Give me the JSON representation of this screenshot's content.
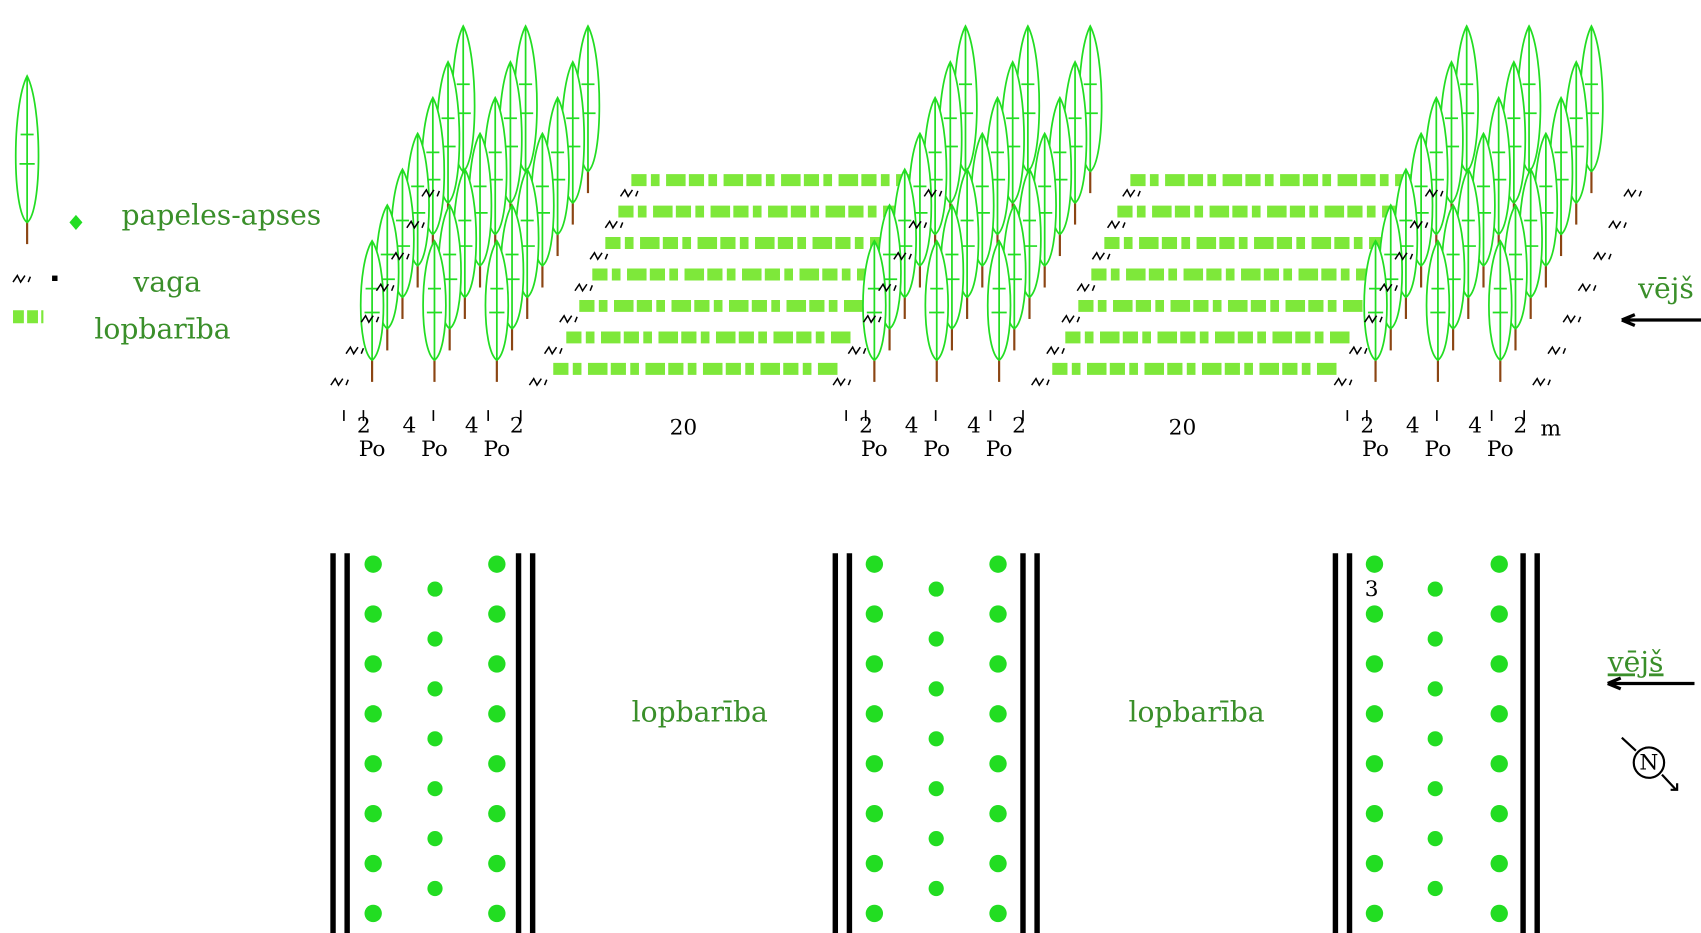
{
  "legend": [
    "papeles-apses",
    "vaga",
    "lopbarība"
  ],
  "top_wind": "vējš",
  "bottom_wind": "vējš",
  "belts": [
    {
      "spacing": [
        "2",
        "4",
        "4",
        "2"
      ],
      "species": [
        "Po",
        "Po",
        "Po"
      ]
    },
    {
      "spacing": [
        "2",
        "4",
        "4",
        "2"
      ],
      "species": [
        "Po",
        "Po",
        "Po"
      ]
    },
    {
      "spacing": [
        "2",
        "4",
        "4",
        "2"
      ],
      "species": [
        "Po",
        "Po",
        "Po"
      ]
    }
  ],
  "fields": [
    "20",
    "20"
  ],
  "unit": "m",
  "row_spacing": "3",
  "plan_fields": [
    "lopbarība",
    "lopbarība"
  ],
  "compass": "N"
}
